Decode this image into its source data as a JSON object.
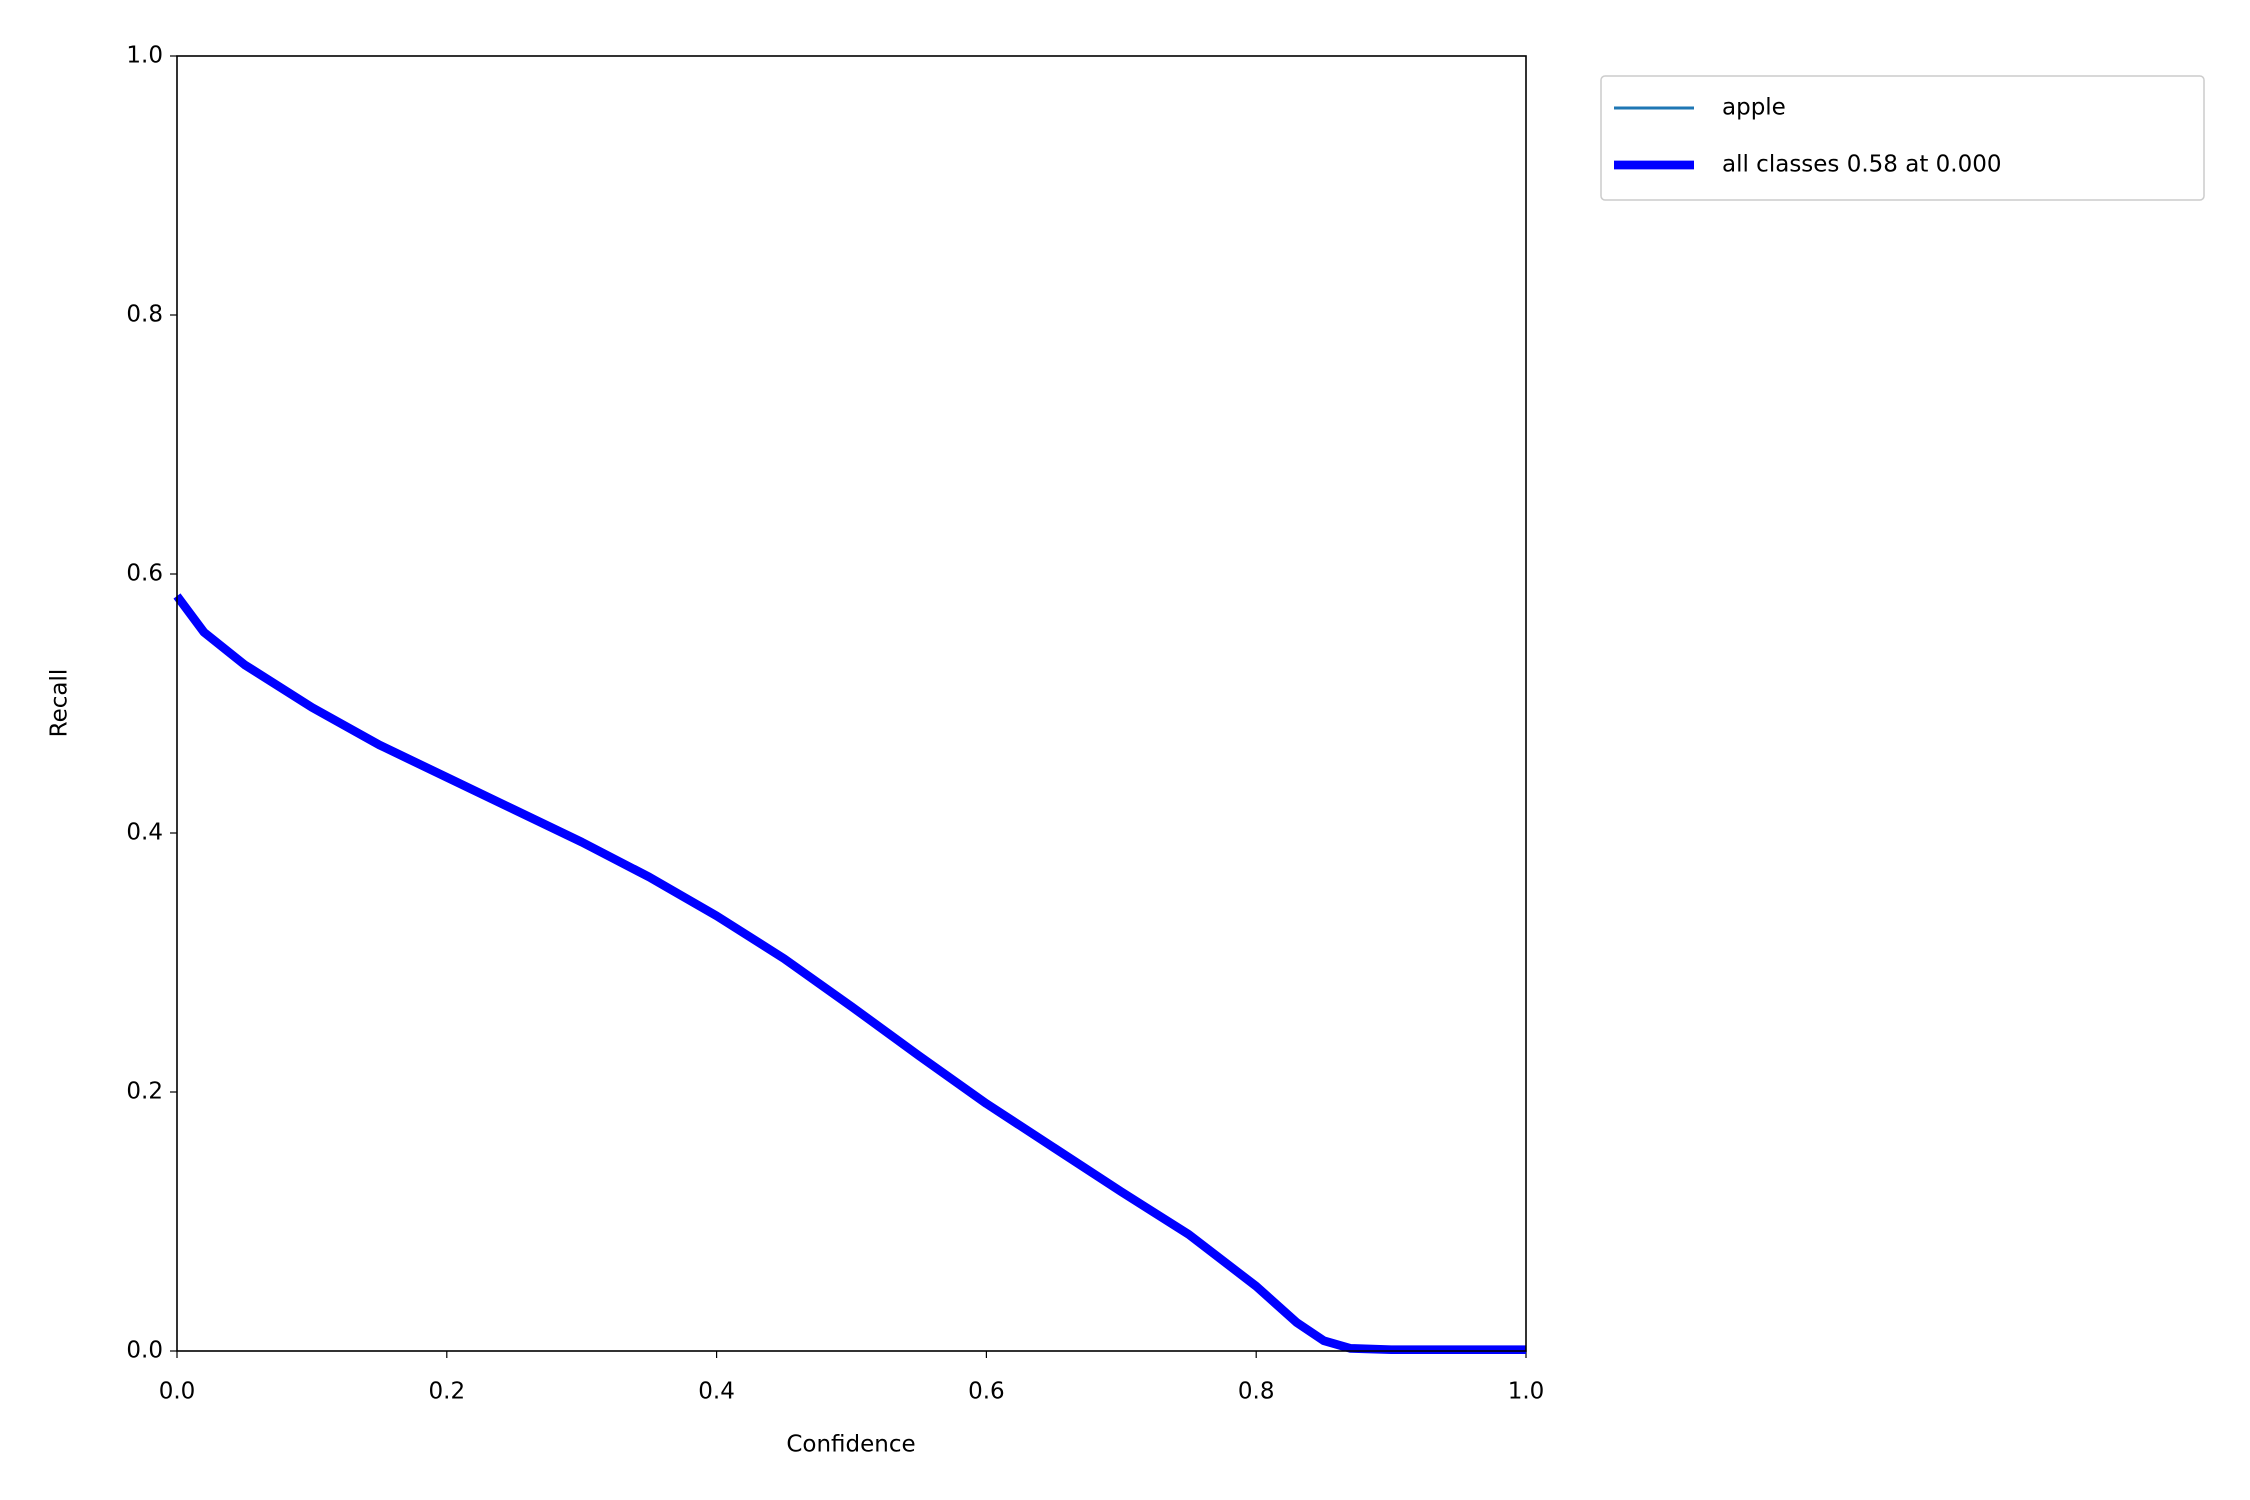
{
  "chart_data": {
    "type": "line",
    "xlabel": "Confidence",
    "ylabel": "Recall",
    "x": [
      0.0,
      0.02,
      0.05,
      0.1,
      0.15,
      0.2,
      0.25,
      0.3,
      0.35,
      0.4,
      0.45,
      0.5,
      0.55,
      0.6,
      0.65,
      0.7,
      0.75,
      0.8,
      0.83,
      0.85,
      0.87,
      0.9,
      1.0
    ],
    "series": [
      {
        "name": "apple",
        "color": "#1f77b4",
        "width": 1,
        "values": [
          0.583,
          0.555,
          0.53,
          0.497,
          0.468,
          0.443,
          0.418,
          0.393,
          0.366,
          0.336,
          0.303,
          0.266,
          0.228,
          0.191,
          0.157,
          0.123,
          0.09,
          0.05,
          0.022,
          0.008,
          0.002,
          0.001,
          0.001
        ]
      },
      {
        "name": "all classes 0.58 at 0.000",
        "color": "#0000ff",
        "width": 3,
        "values": [
          0.583,
          0.555,
          0.53,
          0.497,
          0.468,
          0.443,
          0.418,
          0.393,
          0.366,
          0.336,
          0.303,
          0.266,
          0.228,
          0.191,
          0.157,
          0.123,
          0.09,
          0.05,
          0.022,
          0.008,
          0.002,
          0.001,
          0.001
        ]
      }
    ],
    "xlim": [
      0,
      1
    ],
    "ylim": [
      0,
      1
    ],
    "xticks": [
      {
        "value": 0,
        "label": "0.0"
      },
      0.2,
      0.4,
      0.6,
      0.8,
      {
        "value": 1,
        "label": "1.0"
      }
    ],
    "yticks": [
      {
        "value": 0,
        "label": "0.0"
      },
      0.2,
      0.4,
      0.6,
      0.8,
      {
        "value": 1,
        "label": "1.0"
      }
    ],
    "legend": "upper-right-outside"
  }
}
